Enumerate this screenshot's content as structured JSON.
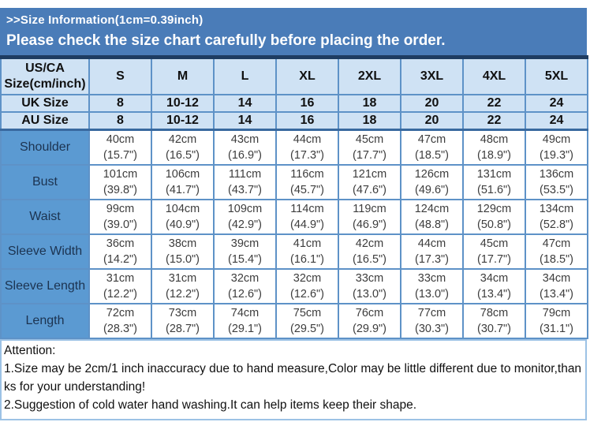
{
  "banner": {
    "line1": ">>Size Information(1cm=0.39inch)",
    "line2": "Please check the size chart carefully before placing the order."
  },
  "colors": {
    "banner_bg": "#4a7cb8",
    "header_bg": "#cfe2f4",
    "label_bg": "#5b9ad2",
    "grid_border": "#5e92c7",
    "table_top_border": "#1e3c61",
    "attention_border": "#9cc2e5"
  },
  "size_table": {
    "corner_label": "US/CA Size(cm/inch)",
    "size_headers": [
      "S",
      "M",
      "L",
      "XL",
      "2XL",
      "3XL",
      "4XL",
      "5XL"
    ],
    "size_rows": [
      {
        "label": "UK Size",
        "values": [
          "8",
          "10-12",
          "14",
          "16",
          "18",
          "20",
          "22",
          "24"
        ]
      },
      {
        "label": "AU Size",
        "values": [
          "8",
          "10-12",
          "14",
          "16",
          "18",
          "20",
          "22",
          "24"
        ]
      }
    ],
    "measurement_rows": [
      {
        "label": "Shoulder",
        "values": [
          {
            "cm": "40cm",
            "inch": "(15.7\")"
          },
          {
            "cm": "42cm",
            "inch": "(16.5\")"
          },
          {
            "cm": "43cm",
            "inch": "(16.9\")"
          },
          {
            "cm": "44cm",
            "inch": "(17.3\")"
          },
          {
            "cm": "45cm",
            "inch": "(17.7\")"
          },
          {
            "cm": "47cm",
            "inch": "(18.5\")"
          },
          {
            "cm": "48cm",
            "inch": "(18.9\")"
          },
          {
            "cm": "49cm",
            "inch": "(19.3\")"
          }
        ]
      },
      {
        "label": "Bust",
        "values": [
          {
            "cm": "101cm",
            "inch": "(39.8\")"
          },
          {
            "cm": "106cm",
            "inch": "(41.7\")"
          },
          {
            "cm": "111cm",
            "inch": "(43.7\")"
          },
          {
            "cm": "116cm",
            "inch": "(45.7\")"
          },
          {
            "cm": "121cm",
            "inch": "(47.6\")"
          },
          {
            "cm": "126cm",
            "inch": "(49.6\")"
          },
          {
            "cm": "131cm",
            "inch": "(51.6\")"
          },
          {
            "cm": "136cm",
            "inch": "(53.5\")"
          }
        ]
      },
      {
        "label": "Waist",
        "values": [
          {
            "cm": "99cm",
            "inch": "(39.0\")"
          },
          {
            "cm": "104cm",
            "inch": "(40.9\")"
          },
          {
            "cm": "109cm",
            "inch": "(42.9\")"
          },
          {
            "cm": "114cm",
            "inch": "(44.9\")"
          },
          {
            "cm": "119cm",
            "inch": "(46.9\")"
          },
          {
            "cm": "124cm",
            "inch": "(48.8\")"
          },
          {
            "cm": "129cm",
            "inch": "(50.8\")"
          },
          {
            "cm": "134cm",
            "inch": "(52.8\")"
          }
        ]
      },
      {
        "label": "Sleeve Width",
        "values": [
          {
            "cm": "36cm",
            "inch": "(14.2\")"
          },
          {
            "cm": "38cm",
            "inch": "(15.0\")"
          },
          {
            "cm": "39cm",
            "inch": "(15.4\")"
          },
          {
            "cm": "41cm",
            "inch": "(16.1\")"
          },
          {
            "cm": "42cm",
            "inch": "(16.5\")"
          },
          {
            "cm": "44cm",
            "inch": "(17.3\")"
          },
          {
            "cm": "45cm",
            "inch": "(17.7\")"
          },
          {
            "cm": "47cm",
            "inch": "(18.5\")"
          }
        ]
      },
      {
        "label": "Sleeve Length",
        "values": [
          {
            "cm": "31cm",
            "inch": "(12.2\")"
          },
          {
            "cm": "31cm",
            "inch": "(12.2\")"
          },
          {
            "cm": "32cm",
            "inch": "(12.6\")"
          },
          {
            "cm": "32cm",
            "inch": "(12.6\")"
          },
          {
            "cm": "33cm",
            "inch": "(13.0\")"
          },
          {
            "cm": "33cm",
            "inch": "(13.0\")"
          },
          {
            "cm": "34cm",
            "inch": "(13.4\")"
          },
          {
            "cm": "34cm",
            "inch": "(13.4\")"
          }
        ]
      },
      {
        "label": "Length",
        "values": [
          {
            "cm": "72cm",
            "inch": "(28.3\")"
          },
          {
            "cm": "73cm",
            "inch": "(28.7\")"
          },
          {
            "cm": "74cm",
            "inch": "(29.1\")"
          },
          {
            "cm": "75cm",
            "inch": "(29.5\")"
          },
          {
            "cm": "76cm",
            "inch": "(29.9\")"
          },
          {
            "cm": "77cm",
            "inch": "(30.3\")"
          },
          {
            "cm": "78cm",
            "inch": "(30.7\")"
          },
          {
            "cm": "79cm",
            "inch": "(31.1\")"
          }
        ]
      }
    ]
  },
  "attention": {
    "title": "Attention:",
    "notes": [
      "1.Size may be 2cm/1 inch inaccuracy due to hand measure,Color may be little different due to monitor,thanks for your understanding!",
      "2.Suggestion of cold water hand washing.It can help items keep their shape."
    ]
  }
}
